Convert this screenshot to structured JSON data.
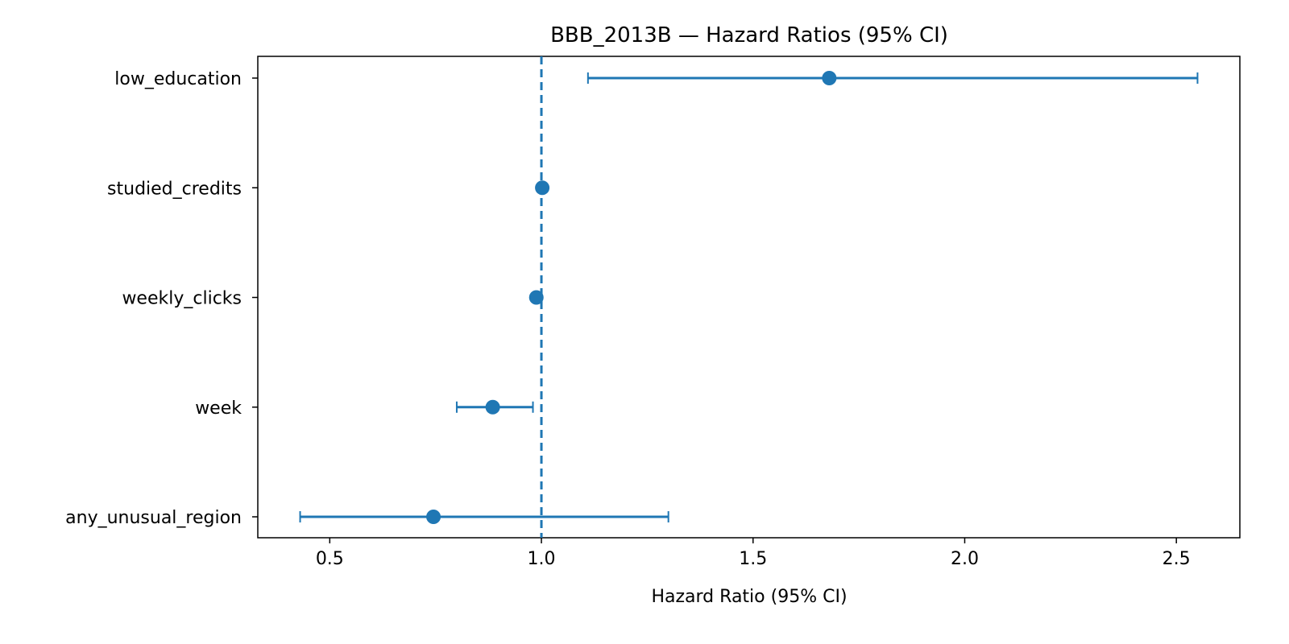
{
  "chart_data": {
    "type": "scatter",
    "subtype": "forest-plot",
    "title": "BBB_2013B — Hazard Ratios (95% CI)",
    "xlabel": "Hazard Ratio (95% CI)",
    "ylabel": "",
    "xlim": [
      0.33,
      2.65
    ],
    "xticks": [
      0.5,
      1.0,
      1.5,
      2.0,
      2.5
    ],
    "xtick_labels": [
      "0.5",
      "1.0",
      "1.5",
      "2.0",
      "2.5"
    ],
    "reference_line": {
      "x": 1.0,
      "style": "dashed"
    },
    "grid": false,
    "color": "#1f77b4",
    "rows": [
      {
        "label": "low_education",
        "hr": 1.68,
        "lower": 1.11,
        "upper": 2.55
      },
      {
        "label": "studied_credits",
        "hr": 1.002,
        "lower": 1.0,
        "upper": 1.004
      },
      {
        "label": "weekly_clicks",
        "hr": 0.988,
        "lower": 0.985,
        "upper": 0.991
      },
      {
        "label": "week",
        "hr": 0.885,
        "lower": 0.8,
        "upper": 0.98
      },
      {
        "label": "any_unusual_region",
        "hr": 0.745,
        "lower": 0.43,
        "upper": 1.3
      }
    ]
  }
}
